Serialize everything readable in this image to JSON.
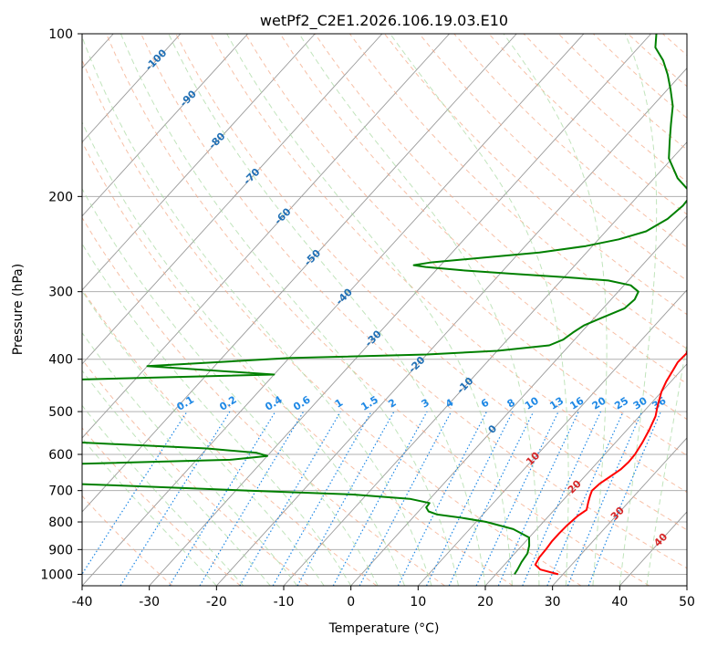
{
  "chart_data": {
    "type": "line",
    "chart_kind": "skew-T log-P",
    "title": "wetPf2_C2E1.2026.106.19.03.E10",
    "xlabel": "Temperature (°C)",
    "ylabel": "Pressure (hPa)",
    "xlim": [
      -40,
      50
    ],
    "ylim": [
      1050,
      100
    ],
    "x_ticks": [
      -40,
      -30,
      -20,
      -10,
      0,
      10,
      20,
      30,
      40,
      50
    ],
    "y_ticks": [
      100,
      200,
      300,
      400,
      500,
      600,
      700,
      800,
      900,
      1000
    ],
    "colors": {
      "temperature": "#ff0000",
      "dewpoint": "#008000",
      "isotherm": "#9a9a9a",
      "dry_adiabat": "#f4a582",
      "moist_adiabat": "#a6d8a0",
      "mixing_ratio": "#1e88e5",
      "isotherm_label": "#1f6fb5",
      "adiabat_label": "#d62728"
    },
    "series": [
      {
        "name": "Temperature",
        "points": [
          [
            29.3,
            1000
          ],
          [
            26.0,
            980
          ],
          [
            24.6,
            960
          ],
          [
            24.2,
            930
          ],
          [
            24.1,
            900
          ],
          [
            23.9,
            870
          ],
          [
            23.9,
            840
          ],
          [
            24.0,
            810
          ],
          [
            24.3,
            780
          ],
          [
            24.8,
            760
          ],
          [
            24.0,
            735
          ],
          [
            23.4,
            715
          ],
          [
            23.0,
            700
          ],
          [
            23.2,
            680
          ],
          [
            23.8,
            660
          ],
          [
            24.4,
            640
          ],
          [
            24.6,
            620
          ],
          [
            24.5,
            600
          ],
          [
            24.0,
            570
          ],
          [
            23.3,
            540
          ],
          [
            22.4,
            510
          ],
          [
            21.4,
            490
          ],
          [
            20.0,
            460
          ],
          [
            19.3,
            440
          ],
          [
            18.8,
            420
          ],
          [
            18.4,
            405
          ],
          [
            18.5,
            390
          ],
          [
            17.6,
            375
          ],
          [
            16.3,
            355
          ],
          [
            14.7,
            335
          ],
          [
            12.9,
            315
          ],
          [
            11.4,
            300
          ],
          [
            10.4,
            285
          ],
          [
            9.3,
            275
          ],
          [
            7.9,
            258
          ],
          [
            5.6,
            240
          ],
          [
            3.0,
            222
          ],
          [
            0.5,
            205
          ],
          [
            -1.8,
            190
          ],
          [
            -4.3,
            175
          ],
          [
            -7.3,
            160
          ],
          [
            -9.8,
            147
          ],
          [
            -12.4,
            136
          ],
          [
            -15.0,
            126
          ],
          [
            -18.3,
            116
          ],
          [
            -21.0,
            108
          ],
          [
            -23.0,
            102
          ],
          [
            -23.5,
            100
          ]
        ]
      },
      {
        "name": "Dewpoint",
        "points": [
          [
            22.8,
            1000
          ],
          [
            22.6,
            980
          ],
          [
            22.2,
            950
          ],
          [
            21.9,
            915
          ],
          [
            21.1,
            885
          ],
          [
            20.0,
            855
          ],
          [
            16.5,
            825
          ],
          [
            11.5,
            800
          ],
          [
            7.0,
            785
          ],
          [
            3.2,
            775
          ],
          [
            1.5,
            765
          ],
          [
            0.6,
            752
          ],
          [
            0.5,
            738
          ],
          [
            -3.0,
            725
          ],
          [
            -12.0,
            712
          ],
          [
            -28.0,
            700
          ],
          [
            -48.0,
            685
          ],
          [
            -70.0,
            670
          ],
          [
            -90.0,
            652
          ],
          [
            -92.0,
            640
          ],
          [
            -60.0,
            626
          ],
          [
            -35.0,
            614
          ],
          [
            -30.0,
            604
          ],
          [
            -32.0,
            596
          ],
          [
            -40.0,
            585
          ],
          [
            -60.0,
            570
          ],
          [
            -90.0,
            560
          ],
          [
            -95.0,
            548
          ],
          [
            -95.0,
            445
          ],
          [
            -40.0,
            427
          ],
          [
            -60.0,
            412
          ],
          [
            -40.0,
            398
          ],
          [
            -20.0,
            392
          ],
          [
            -10.0,
            386
          ],
          [
            -3.0,
            377
          ],
          [
            -1.7,
            368
          ],
          [
            -1.2,
            357
          ],
          [
            -0.5,
            346
          ],
          [
            1.0,
            336
          ],
          [
            3.2,
            322
          ],
          [
            3.5,
            310
          ],
          [
            3.0,
            300
          ],
          [
            1.0,
            292
          ],
          [
            -3.0,
            286
          ],
          [
            -10.0,
            282
          ],
          [
            -18.0,
            278
          ],
          [
            -26.0,
            274
          ],
          [
            -32.0,
            270
          ],
          [
            -34.0,
            268
          ],
          [
            -32.0,
            265
          ],
          [
            -24.0,
            259
          ],
          [
            -17.0,
            254
          ],
          [
            -11.0,
            247
          ],
          [
            -7.0,
            240
          ],
          [
            -4.0,
            232
          ],
          [
            -2.5,
            220
          ],
          [
            -2.0,
            208
          ],
          [
            -2.2,
            198
          ],
          [
            -6.5,
            185
          ],
          [
            -10.5,
            170
          ],
          [
            -12.7,
            158
          ],
          [
            -14.8,
            147
          ],
          [
            -17.0,
            136
          ],
          [
            -19.5,
            127
          ],
          [
            -22.0,
            119
          ],
          [
            -24.6,
            112
          ],
          [
            -27.5,
            106
          ],
          [
            -29.2,
            100
          ]
        ]
      }
    ],
    "isotherm_labels": [
      "-100",
      "-90",
      "-80",
      "-70",
      "-60",
      "-50",
      "-40",
      "-30",
      "-20",
      "-10",
      "0",
      "10",
      "20",
      "30",
      "40"
    ],
    "isotherm_label_values": [
      -100,
      -90,
      -80,
      -70,
      -60,
      -50,
      -40,
      -30,
      -20,
      -10,
      0,
      10,
      20,
      30,
      40
    ],
    "mixing_ratio_labels": [
      "0.1",
      "0.2",
      "0.4",
      "0.6",
      "1",
      "1.5",
      "2",
      "3",
      "4",
      "6",
      "8",
      "10",
      "13",
      "16",
      "20",
      "25",
      "30",
      "36"
    ],
    "mixing_ratio_values": [
      0.1,
      0.2,
      0.4,
      0.6,
      1,
      1.5,
      2,
      3,
      4,
      6,
      8,
      10,
      13,
      16,
      20,
      25,
      30,
      36
    ]
  }
}
